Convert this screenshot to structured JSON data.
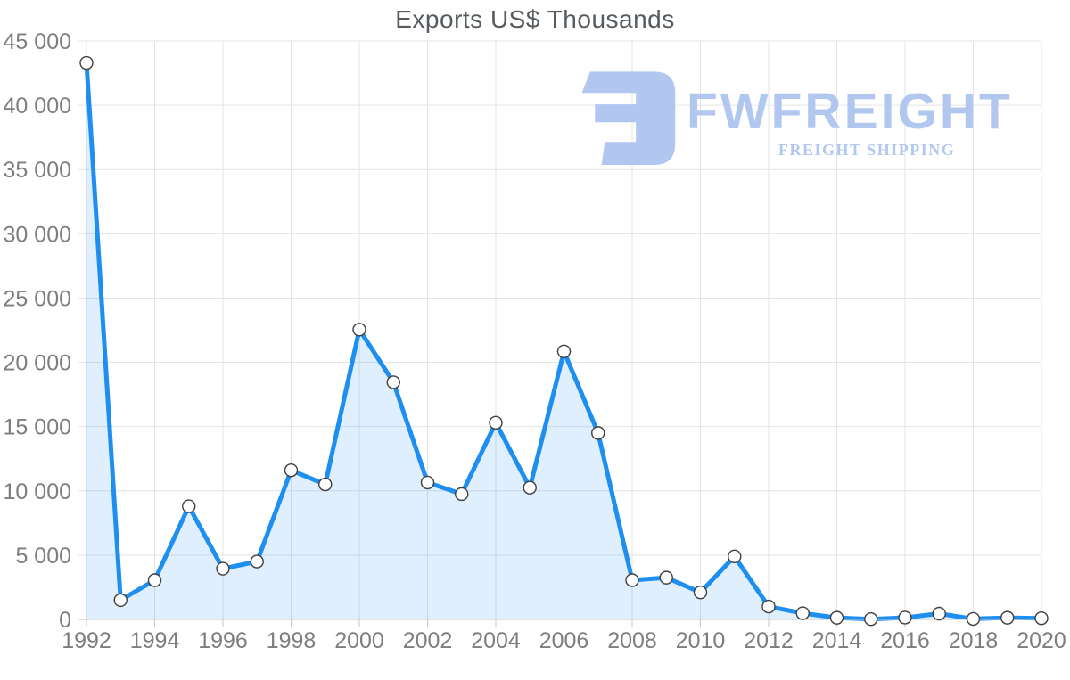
{
  "title": "Exports US$ Thousands",
  "watermark": {
    "brand": "FWFREIGHT",
    "tagline": "FREIGHT SHIPPING",
    "color": "#b1c7f0"
  },
  "colors": {
    "line": "#1e8ff0",
    "area_fill": "#1e8ff0",
    "area_opacity": "0.14",
    "marker_fill": "#ffffff",
    "marker_stroke": "#3f3f3f",
    "gridline": "#e4e4e4",
    "axis_line": "#c6c6c6",
    "axis_label": "#7e7e7e",
    "title_color": "#565b60"
  },
  "chart_data": {
    "type": "area",
    "title": "Exports US$ Thousands",
    "x": [
      1992,
      1993,
      1994,
      1995,
      1996,
      1997,
      1998,
      1999,
      2000,
      2001,
      2002,
      2003,
      2004,
      2005,
      2006,
      2007,
      2008,
      2009,
      2010,
      2011,
      2012,
      2013,
      2014,
      2015,
      2016,
      2017,
      2018,
      2019,
      2020
    ],
    "values": [
      43300,
      1500,
      3050,
      8800,
      3950,
      4500,
      11600,
      10500,
      22550,
      18450,
      10650,
      9750,
      15300,
      10250,
      20850,
      14500,
      3050,
      3250,
      2100,
      4900,
      1000,
      480,
      130,
      20,
      140,
      450,
      40,
      130,
      90
    ],
    "xlabel": "",
    "ylabel": "",
    "ylim": [
      0,
      45000
    ],
    "y_ticks": [
      0,
      5000,
      10000,
      15000,
      20000,
      25000,
      30000,
      35000,
      40000,
      45000
    ],
    "y_tick_labels": [
      "0",
      "5 000",
      "10 000",
      "15 000",
      "20 000",
      "25 000",
      "30 000",
      "35 000",
      "40 000",
      "45 000"
    ],
    "x_tick_years": [
      1992,
      1994,
      1996,
      1998,
      2000,
      2002,
      2004,
      2006,
      2008,
      2010,
      2012,
      2014,
      2016,
      2018,
      2020
    ],
    "grid": true,
    "legend": false,
    "marker": "circle"
  }
}
